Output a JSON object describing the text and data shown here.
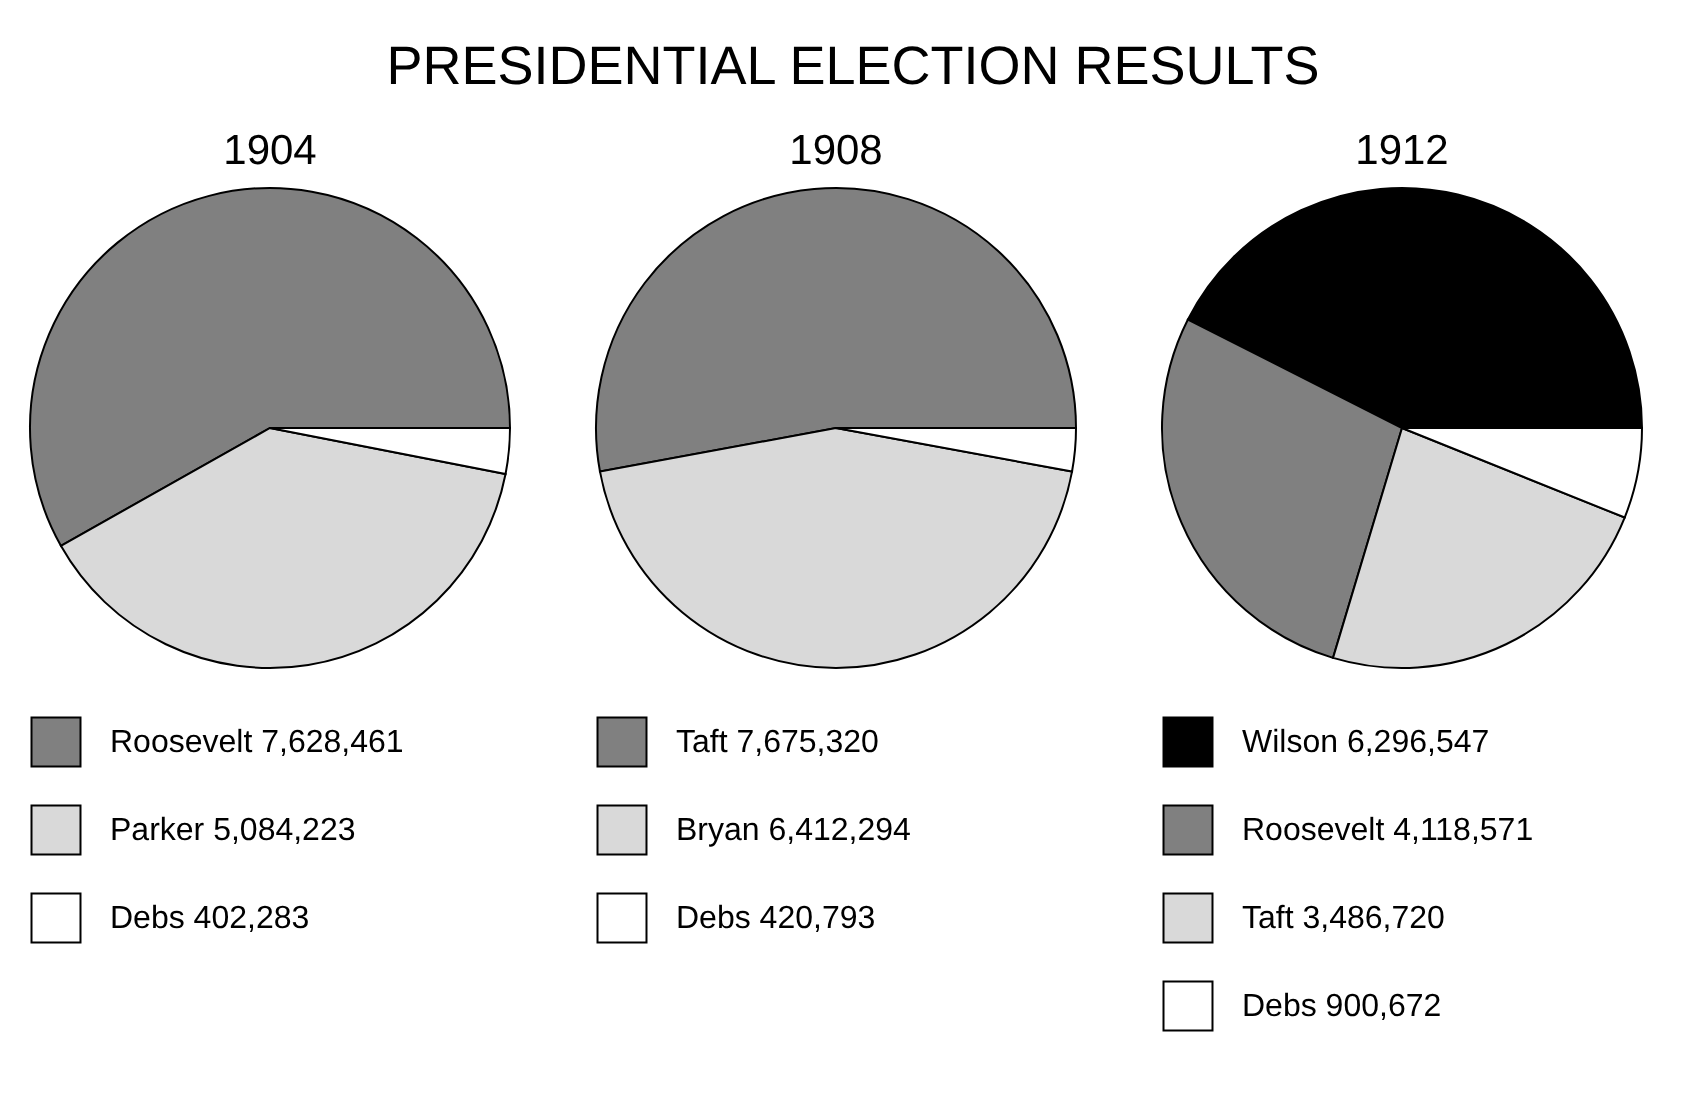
{
  "chart_data": [
    {
      "type": "other",
      "title": "PRESIDENTIAL ELECTION RESULTS"
    },
    {
      "type": "pie",
      "title": "1904",
      "categories": [
        "Roosevelt",
        "Parker",
        "Debs"
      ],
      "values": [
        7628461,
        5084223,
        402283
      ],
      "value_labels": [
        "7,628,461",
        "5,084,223",
        "402,283"
      ],
      "colors": [
        "#808080",
        "#d9d9d9",
        "#ffffff"
      ],
      "legend": "bottom"
    },
    {
      "type": "pie",
      "title": "1908",
      "categories": [
        "Taft",
        "Bryan",
        "Debs"
      ],
      "values": [
        7675320,
        6412294,
        420793
      ],
      "value_labels": [
        "7,675,320",
        "6,412,294",
        "420,793"
      ],
      "colors": [
        "#808080",
        "#d9d9d9",
        "#ffffff"
      ],
      "legend": "bottom"
    },
    {
      "type": "pie",
      "title": "1912",
      "categories": [
        "Wilson",
        "Roosevelt",
        "Taft",
        "Debs"
      ],
      "values": [
        6296547,
        4118571,
        3486720,
        900672
      ],
      "value_labels": [
        "6,296,547",
        "4,118,571",
        "3,486,720",
        "900,672"
      ],
      "colors": [
        "#000000",
        "#808080",
        "#d9d9d9",
        "#ffffff"
      ],
      "legend": "bottom"
    }
  ]
}
